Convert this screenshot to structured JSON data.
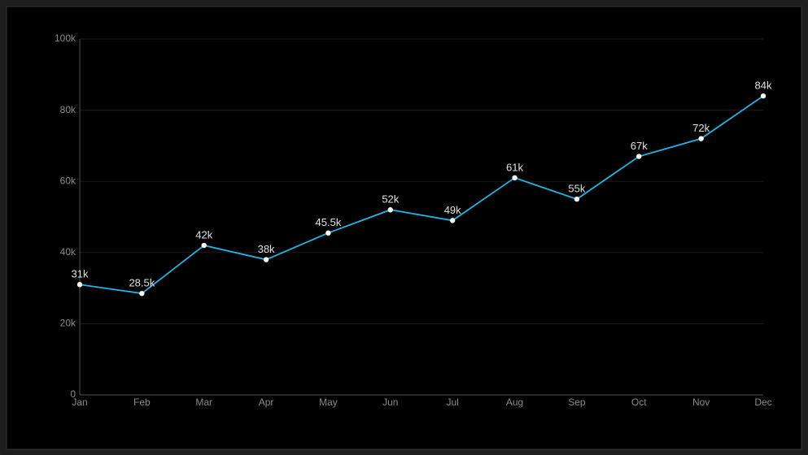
{
  "chart_data": {
    "type": "line",
    "categories": [
      "Jan",
      "Feb",
      "Mar",
      "Apr",
      "May",
      "Jun",
      "Jul",
      "Aug",
      "Sep",
      "Oct",
      "Nov",
      "Dec"
    ],
    "values": [
      31000,
      28500,
      42000,
      38000,
      45500,
      52000,
      49000,
      61000,
      55000,
      67000,
      72000,
      84000
    ],
    "value_labels": [
      "31k",
      "28.5k",
      "42k",
      "38k",
      "45.5k",
      "52k",
      "49k",
      "61k",
      "55k",
      "67k",
      "72k",
      "84k"
    ],
    "color": "#1fb6e6",
    "ylim": [
      0,
      100000
    ],
    "yticks": [
      0,
      {
        "value": 20000,
        "label": "20k"
      },
      {
        "value": 40000,
        "label": "40k"
      },
      {
        "value": 60000,
        "label": "60k"
      },
      {
        "value": 80000,
        "label": "80k"
      },
      {
        "value": 100000,
        "label": "100k"
      }
    ],
    "grid": true
  }
}
